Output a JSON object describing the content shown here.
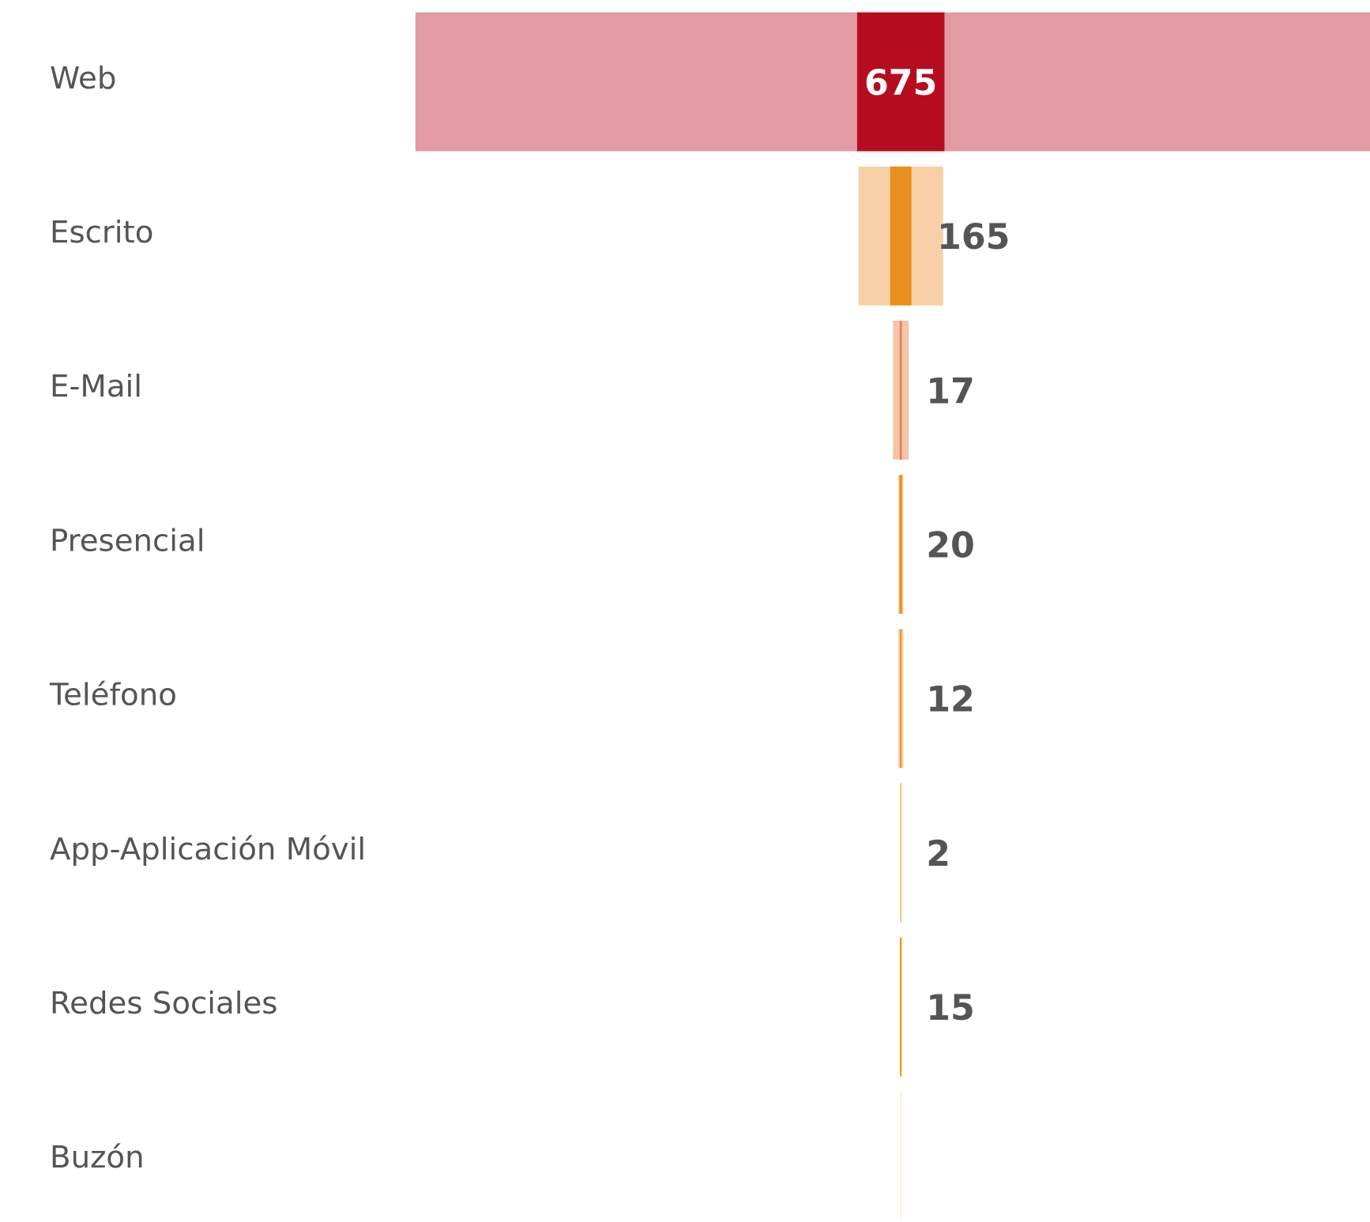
{
  "chart_data": {
    "type": "funnel",
    "categories": [
      "Web",
      "Escrito",
      "E-Mail",
      "Presencial",
      "Teléfono",
      "App-Aplicación Móvil",
      "Redes Sociales",
      "Buzón"
    ],
    "values": [
      675,
      165,
      17,
      20,
      12,
      2,
      15,
      null
    ],
    "colors": [
      "#b50d1f",
      "#e8901f",
      "#e0845a",
      "#e8901f",
      "#e8901f",
      "#e8a020",
      "#e8a020",
      "#f0c060"
    ],
    "background_series": {
      "values": [
        7500,
        655,
        122,
        40,
        40,
        7,
        7,
        7
      ],
      "colors": [
        "#e29ba3",
        "#f7d0a8",
        "#f3c4a8",
        "#f7d0a8",
        "#f7d0a8",
        "#f9dcb0",
        "#f9dcb0",
        "#fbe8c0"
      ]
    }
  }
}
